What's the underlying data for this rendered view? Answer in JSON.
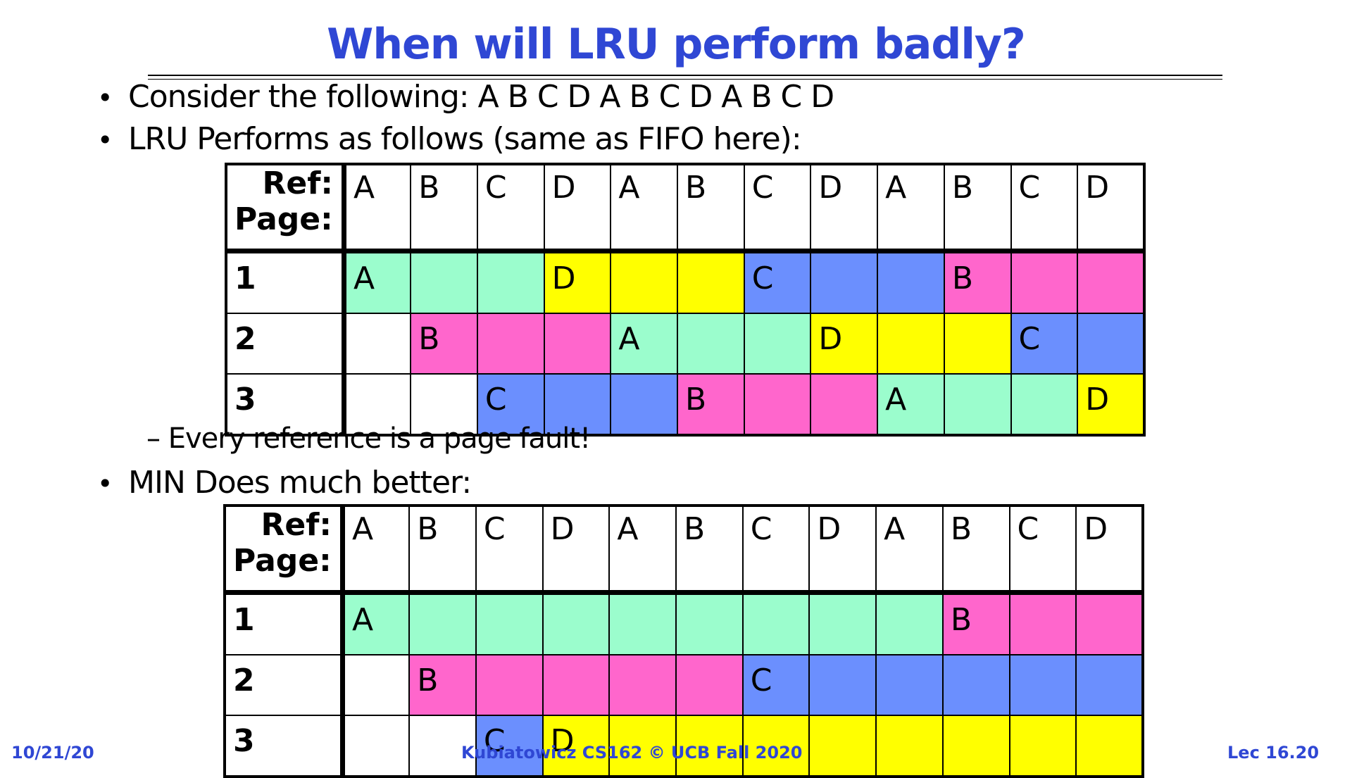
{
  "slide": {
    "title": "When will LRU perform badly?",
    "bullet1": "Consider the following: A B C D A B C D A B C D",
    "bullet2": "LRU Performs as follows (same as FIFO here):",
    "sub1": "– Every reference is a page fault!",
    "bullet3": "MIN Does much better:",
    "bullet_glyph": "•"
  },
  "tables": {
    "ref_label": "Ref:",
    "page_label": "Page:",
    "refs": [
      "A",
      "B",
      "C",
      "D",
      "A",
      "B",
      "C",
      "D",
      "A",
      "B",
      "C",
      "D"
    ],
    "lru": [
      {
        "page": "1",
        "cells": [
          {
            "c": "A",
            "t": "A"
          },
          {
            "c": "A",
            "t": ""
          },
          {
            "c": "A",
            "t": ""
          },
          {
            "c": "D",
            "t": "D"
          },
          {
            "c": "D",
            "t": ""
          },
          {
            "c": "D",
            "t": ""
          },
          {
            "c": "C",
            "t": "C"
          },
          {
            "c": "C",
            "t": ""
          },
          {
            "c": "C",
            "t": ""
          },
          {
            "c": "B",
            "t": "B"
          },
          {
            "c": "B",
            "t": ""
          },
          {
            "c": "B",
            "t": ""
          }
        ]
      },
      {
        "page": "2",
        "cells": [
          {
            "c": "e",
            "t": ""
          },
          {
            "c": "B",
            "t": "B"
          },
          {
            "c": "B",
            "t": ""
          },
          {
            "c": "B",
            "t": ""
          },
          {
            "c": "A",
            "t": "A"
          },
          {
            "c": "A",
            "t": ""
          },
          {
            "c": "A",
            "t": ""
          },
          {
            "c": "D",
            "t": "D"
          },
          {
            "c": "D",
            "t": ""
          },
          {
            "c": "D",
            "t": ""
          },
          {
            "c": "C",
            "t": "C"
          },
          {
            "c": "C",
            "t": ""
          }
        ]
      },
      {
        "page": "3",
        "cells": [
          {
            "c": "e",
            "t": ""
          },
          {
            "c": "e",
            "t": ""
          },
          {
            "c": "C",
            "t": "C"
          },
          {
            "c": "C",
            "t": ""
          },
          {
            "c": "C",
            "t": ""
          },
          {
            "c": "B",
            "t": "B"
          },
          {
            "c": "B",
            "t": ""
          },
          {
            "c": "B",
            "t": ""
          },
          {
            "c": "A",
            "t": "A"
          },
          {
            "c": "A",
            "t": ""
          },
          {
            "c": "A",
            "t": ""
          },
          {
            "c": "D",
            "t": "D"
          }
        ]
      }
    ],
    "min": [
      {
        "page": "1",
        "cells": [
          {
            "c": "A",
            "t": "A"
          },
          {
            "c": "A",
            "t": ""
          },
          {
            "c": "A",
            "t": ""
          },
          {
            "c": "A",
            "t": ""
          },
          {
            "c": "A",
            "t": ""
          },
          {
            "c": "A",
            "t": ""
          },
          {
            "c": "A",
            "t": ""
          },
          {
            "c": "A",
            "t": ""
          },
          {
            "c": "A",
            "t": ""
          },
          {
            "c": "B",
            "t": "B"
          },
          {
            "c": "B",
            "t": ""
          },
          {
            "c": "B",
            "t": ""
          }
        ]
      },
      {
        "page": "2",
        "cells": [
          {
            "c": "e",
            "t": ""
          },
          {
            "c": "B",
            "t": "B"
          },
          {
            "c": "B",
            "t": ""
          },
          {
            "c": "B",
            "t": ""
          },
          {
            "c": "B",
            "t": ""
          },
          {
            "c": "B",
            "t": ""
          },
          {
            "c": "C",
            "t": "C"
          },
          {
            "c": "C",
            "t": ""
          },
          {
            "c": "C",
            "t": ""
          },
          {
            "c": "C",
            "t": ""
          },
          {
            "c": "C",
            "t": ""
          },
          {
            "c": "C",
            "t": ""
          }
        ]
      },
      {
        "page": "3",
        "cells": [
          {
            "c": "e",
            "t": ""
          },
          {
            "c": "e",
            "t": ""
          },
          {
            "c": "C",
            "t": "C"
          },
          {
            "c": "D",
            "t": "D"
          },
          {
            "c": "D",
            "t": ""
          },
          {
            "c": "D",
            "t": ""
          },
          {
            "c": "D",
            "t": ""
          },
          {
            "c": "D",
            "t": ""
          },
          {
            "c": "D",
            "t": ""
          },
          {
            "c": "D",
            "t": ""
          },
          {
            "c": "D",
            "t": ""
          },
          {
            "c": "D",
            "t": ""
          }
        ]
      }
    ]
  },
  "colors": {
    "title": "#2f47d4",
    "A": "#9bfdcd",
    "B": "#ff66cc",
    "C": "#6b8ffe",
    "D": "#ffff00"
  },
  "footer": {
    "date": "10/21/20",
    "course": "Kubiatowicz CS162 © UCB Fall 2020",
    "lecture": "Lec 16.20"
  }
}
